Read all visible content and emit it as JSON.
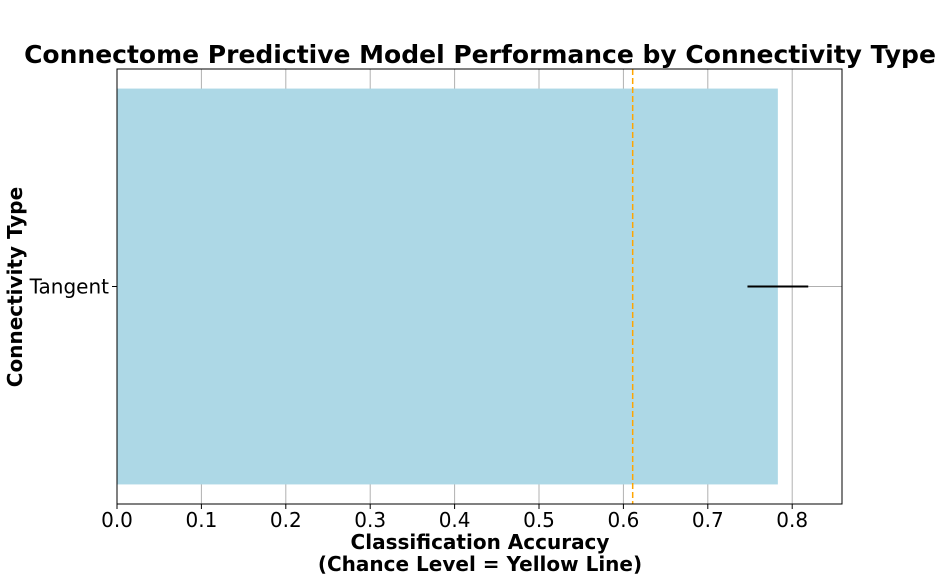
{
  "chart_data": {
    "type": "bar",
    "orientation": "horizontal",
    "title": "Connectome Predictive Model Performance by Connectivity Type",
    "xlabel_line1": "Classification Accuracy",
    "xlabel_line2": "(Chance Level = Yellow Line)",
    "ylabel": "Connectivity Type",
    "categories": [
      "Tangent"
    ],
    "values": [
      0.783
    ],
    "error_low": [
      0.747
    ],
    "error_high": [
      0.819
    ],
    "reference_line": {
      "value": 0.611,
      "style": "dashed",
      "color": "#FFA500"
    },
    "xlim": [
      0.0,
      0.859
    ],
    "xticks": [
      0.0,
      0.1,
      0.2,
      0.3,
      0.4,
      0.5,
      0.6,
      0.7,
      0.8
    ],
    "xtick_labels": [
      "0.0",
      "0.1",
      "0.2",
      "0.3",
      "0.4",
      "0.5",
      "0.6",
      "0.7",
      "0.8"
    ],
    "grid": true,
    "colors": {
      "bar": "#ADD8E6",
      "errorbar": "#000000",
      "grid": "#b0b0b0",
      "axes": "#000000"
    }
  }
}
